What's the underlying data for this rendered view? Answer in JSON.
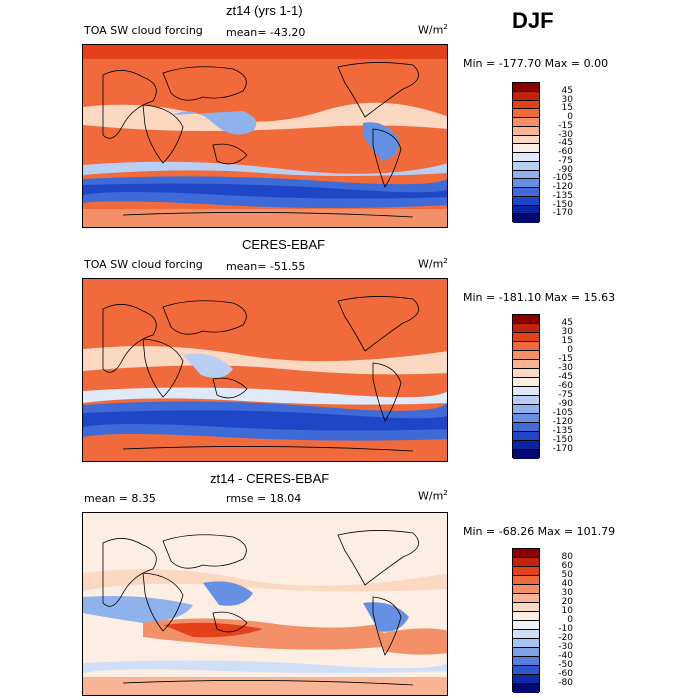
{
  "season": "DJF",
  "panels": [
    {
      "title": "zt14 (yrs 1-1)",
      "field": "TOA SW cloud forcing",
      "stat1": "mean= -43.20",
      "stat2": "",
      "units": "W/m",
      "units_exp": "2",
      "minmax": "Min = -177.70 Max =    0.00"
    },
    {
      "title": "CERES-EBAF",
      "field": "TOA SW cloud forcing",
      "stat1": "mean= -51.55",
      "stat2": "",
      "units": "W/m",
      "units_exp": "2",
      "minmax": "Min = -181.10 Max =  15.63"
    },
    {
      "title": "zt14 - CERES-EBAF",
      "field": "",
      "stat1": "mean =    8.35",
      "stat2": "rmse =   18.04",
      "units": "W/m",
      "units_exp": "2",
      "minmax": "Min = -68.26 Max = 101.79"
    }
  ],
  "colorbars": [
    {
      "labels": [
        "45",
        "30",
        "15",
        "0",
        "-15",
        "-30",
        "-45",
        "-60",
        "-75",
        "-90",
        "-105",
        "-120",
        "-135",
        "-150",
        "-170"
      ],
      "colors": [
        "#8b0000",
        "#c0240c",
        "#e4401a",
        "#f06a3c",
        "#f39068",
        "#f7b596",
        "#fad8c2",
        "#fdeee4",
        "#dfe9f8",
        "#b8cff3",
        "#8fb2ec",
        "#6690e3",
        "#3e6bd8",
        "#1f46c6",
        "#0b24a4",
        "#000a6e"
      ]
    },
    {
      "labels": [
        "45",
        "30",
        "15",
        "0",
        "-15",
        "-30",
        "-45",
        "-60",
        "-75",
        "-90",
        "-105",
        "-120",
        "-135",
        "-150",
        "-170"
      ],
      "colors": [
        "#8b0000",
        "#c0240c",
        "#e4401a",
        "#f06a3c",
        "#f39068",
        "#f7b596",
        "#fad8c2",
        "#fdeee4",
        "#dfe9f8",
        "#b8cff3",
        "#8fb2ec",
        "#6690e3",
        "#3e6bd8",
        "#1f46c6",
        "#0b24a4",
        "#000a6e"
      ]
    },
    {
      "labels": [
        "80",
        "60",
        "50",
        "40",
        "30",
        "20",
        "10",
        "0",
        "-10",
        "-20",
        "-30",
        "-40",
        "-50",
        "-60",
        "-80"
      ],
      "colors": [
        "#8b0000",
        "#c0240c",
        "#e4401a",
        "#f06a3c",
        "#f39068",
        "#f7b596",
        "#fad8c2",
        "#fdeee4",
        "#eef3fb",
        "#cfdff6",
        "#a8c3ef",
        "#7ea2e6",
        "#557fdc",
        "#2d57cc",
        "#0d2aa8",
        "#000a6e"
      ]
    }
  ],
  "chart_data": {
    "type": "heatmap",
    "season": "DJF",
    "panels": [
      {
        "title": "zt14 (yrs 1-1)",
        "variable": "TOA SW cloud forcing",
        "units": "W/m2",
        "mean": -43.2,
        "min": -177.7,
        "max": 0.0,
        "levels": [
          45,
          30,
          15,
          0,
          -15,
          -30,
          -45,
          -60,
          -75,
          -90,
          -105,
          -120,
          -135,
          -150,
          -170
        ]
      },
      {
        "title": "CERES-EBAF",
        "variable": "TOA SW cloud forcing",
        "units": "W/m2",
        "mean": -51.55,
        "min": -181.1,
        "max": 15.63,
        "levels": [
          45,
          30,
          15,
          0,
          -15,
          -30,
          -45,
          -60,
          -75,
          -90,
          -105,
          -120,
          -135,
          -150,
          -170
        ]
      },
      {
        "title": "zt14 - CERES-EBAF",
        "units": "W/m2",
        "mean": 8.35,
        "rmse": 18.04,
        "min": -68.26,
        "max": 101.79,
        "levels": [
          80,
          60,
          50,
          40,
          30,
          20,
          10,
          0,
          -10,
          -20,
          -30,
          -40,
          -50,
          -60,
          -80
        ]
      }
    ]
  }
}
